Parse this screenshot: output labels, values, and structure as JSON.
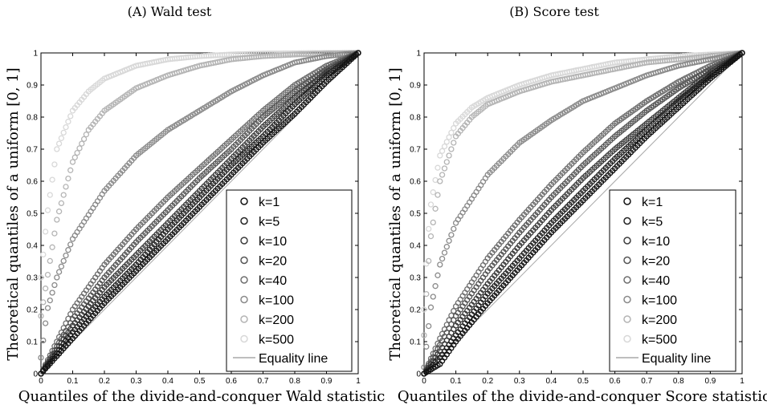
{
  "chart_data": [
    {
      "type": "scatter",
      "title": "(A) Wald test",
      "xlabel": "Quantiles of the divide-and-conquer Wald statistic",
      "ylabel": "Theoretical quantiles of a uniform [0, 1]",
      "xlim": [
        0,
        1
      ],
      "ylim": [
        0,
        1
      ],
      "xticks": [
        "0",
        "0.1",
        "0.2",
        "0.3",
        "0.4",
        "0.5",
        "0.6",
        "0.7",
        "0.8",
        "0.9",
        "1"
      ],
      "yticks": [
        "0",
        "0.1",
        "0.2",
        "0.3",
        "0.4",
        "0.5",
        "0.6",
        "0.7",
        "0.8",
        "0.9",
        "1"
      ],
      "legend_position": "lower-right",
      "reference_line": {
        "name": "Equality line",
        "x": [
          0,
          1
        ],
        "y": [
          0,
          1
        ],
        "color": "#a8a8a8"
      },
      "series": [
        {
          "name": "k=1",
          "color": "#111111",
          "x": [
            0,
            0.1,
            0.2,
            0.3,
            0.4,
            0.5,
            0.6,
            0.7,
            0.8,
            0.9,
            1
          ],
          "y": [
            0,
            0.11,
            0.22,
            0.32,
            0.42,
            0.52,
            0.62,
            0.72,
            0.81,
            0.91,
            1
          ]
        },
        {
          "name": "k=5",
          "color": "#222222",
          "x": [
            0,
            0.1,
            0.2,
            0.3,
            0.4,
            0.5,
            0.6,
            0.7,
            0.8,
            0.9,
            1
          ],
          "y": [
            0,
            0.13,
            0.24,
            0.34,
            0.45,
            0.55,
            0.65,
            0.74,
            0.84,
            0.93,
            1
          ]
        },
        {
          "name": "k=10",
          "color": "#3c3c3c",
          "x": [
            0,
            0.1,
            0.2,
            0.3,
            0.4,
            0.5,
            0.6,
            0.7,
            0.8,
            0.9,
            1
          ],
          "y": [
            0,
            0.15,
            0.27,
            0.37,
            0.47,
            0.57,
            0.67,
            0.77,
            0.86,
            0.94,
            1
          ]
        },
        {
          "name": "k=20",
          "color": "#555555",
          "x": [
            0,
            0.1,
            0.2,
            0.3,
            0.4,
            0.5,
            0.6,
            0.7,
            0.8,
            0.9,
            1
          ],
          "y": [
            0,
            0.17,
            0.3,
            0.41,
            0.51,
            0.61,
            0.7,
            0.8,
            0.88,
            0.95,
            1
          ]
        },
        {
          "name": "k=40",
          "color": "#6e6e6e",
          "x": [
            0,
            0.1,
            0.2,
            0.3,
            0.4,
            0.5,
            0.6,
            0.7,
            0.8,
            0.9,
            1
          ],
          "y": [
            0,
            0.2,
            0.34,
            0.45,
            0.55,
            0.64,
            0.73,
            0.82,
            0.9,
            0.96,
            1
          ]
        },
        {
          "name": "k=100",
          "color": "#8a8a8a",
          "x": [
            0,
            0.02,
            0.05,
            0.1,
            0.2,
            0.3,
            0.4,
            0.5,
            0.6,
            0.7,
            0.8,
            0.9,
            1
          ],
          "y": [
            0.05,
            0.2,
            0.3,
            0.42,
            0.57,
            0.68,
            0.76,
            0.82,
            0.88,
            0.93,
            0.97,
            0.99,
            1
          ]
        },
        {
          "name": "k=200",
          "color": "#b4b4b4",
          "x": [
            0,
            0.02,
            0.05,
            0.1,
            0.15,
            0.2,
            0.3,
            0.4,
            0.5,
            0.6,
            0.7,
            0.8,
            0.9,
            1
          ],
          "y": [
            0.18,
            0.3,
            0.48,
            0.66,
            0.76,
            0.82,
            0.89,
            0.93,
            0.96,
            0.98,
            0.99,
            0.995,
            0.998,
            1
          ]
        },
        {
          "name": "k=500",
          "color": "#d8d8d8",
          "x": [
            0,
            0.02,
            0.05,
            0.1,
            0.15,
            0.2,
            0.3,
            0.4,
            0.5,
            0.6,
            0.7,
            0.8,
            0.9,
            1
          ],
          "y": [
            0.3,
            0.5,
            0.7,
            0.82,
            0.88,
            0.92,
            0.96,
            0.98,
            0.99,
            0.995,
            0.998,
            0.999,
            1,
            1
          ]
        }
      ]
    },
    {
      "type": "scatter",
      "title": "(B) Score test",
      "xlabel": "Quantiles of the divide-and-conquer Score statistic",
      "ylabel": "Theoretical quantiles of a uniform [0, 1]",
      "xlim": [
        0,
        1
      ],
      "ylim": [
        0,
        1
      ],
      "xticks": [
        "0",
        "0.1",
        "0.2",
        "0.3",
        "0.4",
        "0.5",
        "0.6",
        "0.7",
        "0.8",
        "0.9",
        "1"
      ],
      "yticks": [
        "0",
        "0.1",
        "0.2",
        "0.3",
        "0.4",
        "0.5",
        "0.6",
        "0.7",
        "0.8",
        "0.9",
        "1"
      ],
      "legend_position": "lower-right",
      "reference_line": {
        "name": "Equality line",
        "x": [
          0,
          1
        ],
        "y": [
          0,
          1
        ],
        "color": "#a8a8a8"
      },
      "series": [
        {
          "name": "k=1",
          "color": "#111111",
          "x": [
            0,
            0.05,
            0.1,
            0.2,
            0.3,
            0.4,
            0.5,
            0.6,
            0.7,
            0.8,
            0.9,
            1
          ],
          "y": [
            0,
            0.03,
            0.1,
            0.22,
            0.33,
            0.44,
            0.54,
            0.64,
            0.74,
            0.83,
            0.92,
            1
          ]
        },
        {
          "name": "k=5",
          "color": "#222222",
          "x": [
            0,
            0.05,
            0.1,
            0.2,
            0.3,
            0.4,
            0.5,
            0.6,
            0.7,
            0.8,
            0.9,
            1
          ],
          "y": [
            0,
            0.05,
            0.12,
            0.25,
            0.36,
            0.47,
            0.57,
            0.67,
            0.76,
            0.85,
            0.93,
            1
          ]
        },
        {
          "name": "k=10",
          "color": "#3c3c3c",
          "x": [
            0,
            0.05,
            0.1,
            0.2,
            0.3,
            0.4,
            0.5,
            0.6,
            0.7,
            0.8,
            0.9,
            1
          ],
          "y": [
            0,
            0.07,
            0.15,
            0.28,
            0.4,
            0.51,
            0.61,
            0.7,
            0.78,
            0.86,
            0.94,
            1
          ]
        },
        {
          "name": "k=20",
          "color": "#555555",
          "x": [
            0,
            0.05,
            0.1,
            0.2,
            0.3,
            0.4,
            0.5,
            0.6,
            0.7,
            0.8,
            0.9,
            1
          ],
          "y": [
            0,
            0.09,
            0.18,
            0.32,
            0.44,
            0.55,
            0.65,
            0.74,
            0.82,
            0.89,
            0.95,
            1
          ]
        },
        {
          "name": "k=40",
          "color": "#6e6e6e",
          "x": [
            0,
            0.05,
            0.1,
            0.2,
            0.3,
            0.4,
            0.5,
            0.6,
            0.7,
            0.8,
            0.9,
            1
          ],
          "y": [
            0,
            0.11,
            0.21,
            0.36,
            0.48,
            0.59,
            0.69,
            0.78,
            0.85,
            0.91,
            0.96,
            1
          ]
        },
        {
          "name": "k=100",
          "color": "#8a8a8a",
          "x": [
            0,
            0.02,
            0.05,
            0.1,
            0.2,
            0.3,
            0.4,
            0.5,
            0.6,
            0.7,
            0.8,
            0.9,
            1
          ],
          "y": [
            0.02,
            0.2,
            0.34,
            0.47,
            0.62,
            0.72,
            0.79,
            0.85,
            0.89,
            0.93,
            0.96,
            0.98,
            1
          ]
        },
        {
          "name": "k=200",
          "color": "#b4b4b4",
          "x": [
            0,
            0.01,
            0.02,
            0.05,
            0.1,
            0.15,
            0.2,
            0.3,
            0.4,
            0.5,
            0.6,
            0.7,
            0.8,
            0.9,
            1
          ],
          "y": [
            0.12,
            0.3,
            0.42,
            0.6,
            0.74,
            0.8,
            0.84,
            0.88,
            0.91,
            0.93,
            0.95,
            0.97,
            0.98,
            0.99,
            1
          ]
        },
        {
          "name": "k=500",
          "color": "#d8d8d8",
          "x": [
            0,
            0.01,
            0.02,
            0.05,
            0.1,
            0.15,
            0.2,
            0.3,
            0.4,
            0.5,
            0.6,
            0.7,
            0.8,
            0.9,
            1
          ],
          "y": [
            0.2,
            0.4,
            0.52,
            0.68,
            0.78,
            0.83,
            0.86,
            0.9,
            0.93,
            0.95,
            0.97,
            0.98,
            0.99,
            0.995,
            1
          ]
        }
      ]
    }
  ]
}
